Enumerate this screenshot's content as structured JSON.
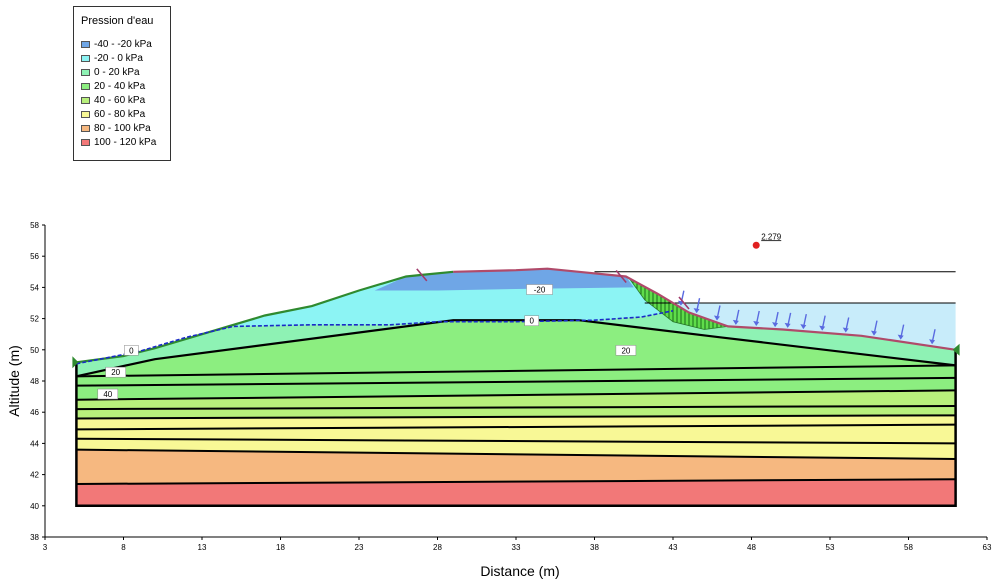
{
  "legend": {
    "title": "Pression d'eau",
    "items": [
      {
        "label": "-40 - -20 kPa",
        "color": "#6fa6e6"
      },
      {
        "label": "-20 - 0 kPa",
        "color": "#8cf4f4"
      },
      {
        "label": "0 - 20 kPa",
        "color": "#8ef2b4"
      },
      {
        "label": "20 - 40 kPa",
        "color": "#8cee80"
      },
      {
        "label": "40 - 60 kPa",
        "color": "#b8f07c"
      },
      {
        "label": "60 - 80 kPa",
        "color": "#f8f896"
      },
      {
        "label": "80 - 100 kPa",
        "color": "#f6b880"
      },
      {
        "label": "100 - 120 kPa",
        "color": "#f27878"
      }
    ]
  },
  "chart_data": {
    "type": "area",
    "xlabel": "Distance (m)",
    "ylabel": "Altitude (m)",
    "xlim": [
      3,
      63
    ],
    "ylim": [
      38,
      58
    ],
    "xticks": [
      3,
      8,
      13,
      18,
      23,
      28,
      33,
      38,
      43,
      48,
      53,
      58,
      63
    ],
    "yticks": [
      38,
      40,
      42,
      44,
      46,
      48,
      50,
      52,
      54,
      56,
      58
    ],
    "ground_surface": [
      [
        5,
        49.2
      ],
      [
        8,
        49.6
      ],
      [
        10,
        50.1
      ],
      [
        13,
        51.0
      ],
      [
        17,
        52.2
      ],
      [
        20,
        52.8
      ],
      [
        23,
        53.8
      ],
      [
        26,
        54.7
      ],
      [
        27,
        54.8
      ],
      [
        29,
        55.0
      ],
      [
        33,
        55.1
      ],
      [
        35,
        55.2
      ],
      [
        37,
        55.0
      ],
      [
        40,
        54.7
      ],
      [
        42,
        53.6
      ],
      [
        44,
        52.4
      ],
      [
        46.5,
        51.5
      ],
      [
        50,
        51.3
      ],
      [
        55,
        50.9
      ],
      [
        61,
        50.0
      ]
    ],
    "piezometric_line": [
      [
        5,
        49.1
      ],
      [
        9,
        49.9
      ],
      [
        12,
        50.8
      ],
      [
        15,
        51.5
      ],
      [
        20,
        51.6
      ],
      [
        25,
        51.6
      ],
      [
        28,
        51.8
      ],
      [
        33,
        51.8
      ],
      [
        38,
        51.9
      ],
      [
        41,
        52.1
      ],
      [
        43,
        52.5
      ]
    ],
    "reservoir_level": 53.0,
    "reference_line": 55.0,
    "contour_labels": [
      {
        "text": "-20",
        "x": 34.5,
        "y": 53.8
      },
      {
        "text": "0",
        "x": 34,
        "y": 51.8
      },
      {
        "text": "0",
        "x": 8.5,
        "y": 49.9
      },
      {
        "text": "20",
        "x": 40,
        "y": 49.9
      },
      {
        "text": "20",
        "x": 7.5,
        "y": 48.5
      },
      {
        "text": "40",
        "x": 7.0,
        "y": 47.1
      }
    ],
    "slip_circle_center": {
      "x": 48.3,
      "y": 56.7
    },
    "safety_factor": "2.279",
    "pressure_bands": [
      {
        "top_left": 48.3,
        "top_right": 49.0,
        "bottom_left": 47.7,
        "bottom_right": 48.2,
        "color": "#8cee80"
      },
      {
        "top_left": 47.7,
        "top_right": 48.2,
        "bottom_left": 46.8,
        "bottom_right": 47.4,
        "color": "#8cee80"
      },
      {
        "top_left": 46.8,
        "top_right": 47.4,
        "bottom_left": 46.2,
        "bottom_right": 46.4,
        "color": "#b8f07c"
      },
      {
        "top_left": 46.2,
        "top_right": 46.4,
        "bottom_left": 45.6,
        "bottom_right": 45.8,
        "color": "#b8f07c"
      },
      {
        "top_left": 45.6,
        "top_right": 45.8,
        "bottom_left": 44.9,
        "bottom_right": 45.2,
        "color": "#f8f896"
      },
      {
        "top_left": 44.9,
        "top_right": 45.2,
        "bottom_left": 44.3,
        "bottom_right": 44.0,
        "color": "#f8f896"
      },
      {
        "top_left": 44.3,
        "top_right": 44.0,
        "bottom_left": 43.6,
        "bottom_right": 43.0,
        "color": "#f8f896"
      },
      {
        "top_left": 43.6,
        "top_right": 43.0,
        "bottom_left": 41.4,
        "bottom_right": 41.7,
        "color": "#f6b880"
      },
      {
        "top_left": 41.4,
        "top_right": 41.7,
        "bottom_left": 40.0,
        "bottom_right": 40.0,
        "color": "#f27878"
      }
    ]
  }
}
